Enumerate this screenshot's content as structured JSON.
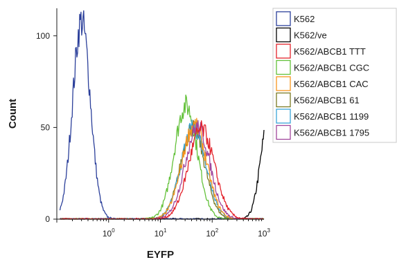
{
  "chart_data": {
    "type": "line",
    "title": "",
    "xlabel": "EYFP",
    "ylabel": "Count",
    "x_scale": "log",
    "xlim": [
      0.1,
      1000
    ],
    "ylim": [
      0,
      115
    ],
    "x_ticks": [
      {
        "value": 1,
        "base": "10",
        "exp": "0"
      },
      {
        "value": 10,
        "base": "10",
        "exp": "1"
      },
      {
        "value": 100,
        "base": "10",
        "exp": "2"
      },
      {
        "value": 1000,
        "base": "10",
        "exp": "3"
      }
    ],
    "y_ticks": [
      {
        "value": 0,
        "label": "0"
      },
      {
        "value": 50,
        "label": "50"
      },
      {
        "value": 100,
        "label": "100"
      }
    ],
    "grid": false,
    "legend_position": "right",
    "series": [
      {
        "name": "K562",
        "color": "#2b3f9a",
        "peaks": [
          {
            "center": 0.3,
            "height": 108,
            "width": 0.17
          }
        ]
      },
      {
        "name": "K562/ve",
        "color": "#000000",
        "peaks": [
          {
            "center": 1200,
            "height": 52,
            "width": 0.15
          }
        ]
      },
      {
        "name": "K562/ABCB1 TTT",
        "color": "#e3222b",
        "peaks": [
          {
            "center": 62,
            "height": 49,
            "width": 0.25
          }
        ]
      },
      {
        "name": "K562/ABCB1 CGC",
        "color": "#63c13a",
        "peaks": [
          {
            "center": 31,
            "height": 62,
            "width": 0.22
          }
        ]
      },
      {
        "name": "K562/ABCB1 CAC",
        "color": "#f7941d",
        "peaks": [
          {
            "center": 45,
            "height": 51,
            "width": 0.24
          }
        ]
      },
      {
        "name": "K562/ABCB1 61",
        "color": "#7a7a22",
        "peaks": [
          {
            "center": 42,
            "height": 50,
            "width": 0.23
          }
        ]
      },
      {
        "name": "K562/ABCB1 1199",
        "color": "#39a4d8",
        "peaks": [
          {
            "center": 44,
            "height": 50,
            "width": 0.24
          }
        ]
      },
      {
        "name": "K562/ABCB1 1795",
        "color": "#a0469c",
        "peaks": [
          {
            "center": 52,
            "height": 50,
            "width": 0.24
          }
        ]
      }
    ]
  }
}
